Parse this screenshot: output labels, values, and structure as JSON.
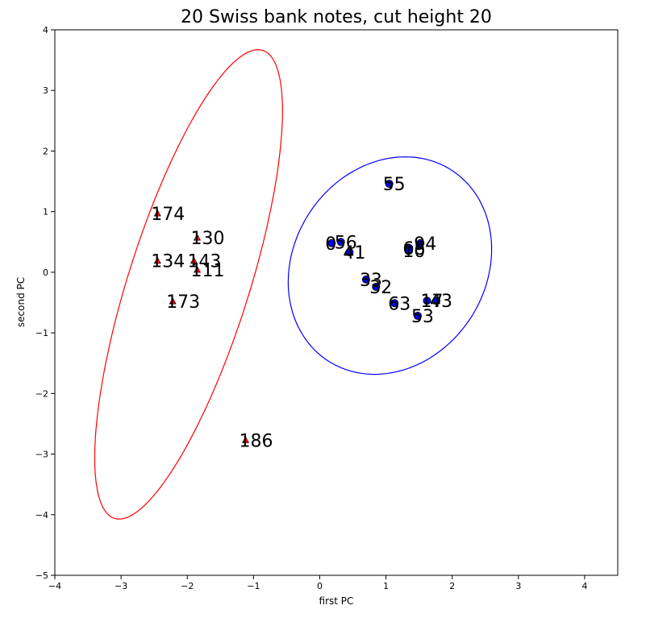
{
  "chart_data": {
    "type": "scatter",
    "title": "20 Swiss bank notes, cut height 20",
    "xlabel": "first PC",
    "ylabel": "second PC",
    "xlim": [
      -4,
      4.5
    ],
    "ylim": [
      -5,
      4
    ],
    "xticks": [
      -4,
      -3,
      -2,
      -1,
      0,
      1,
      2,
      3,
      4
    ],
    "yticks": [
      -5,
      -4,
      -3,
      -2,
      -1,
      0,
      1,
      2,
      3,
      4
    ],
    "tick_labels_x": [
      "−4",
      "−3",
      "−2",
      "−1",
      "0",
      "1",
      "2",
      "3",
      "4"
    ],
    "tick_labels_y": [
      "−5",
      "−4",
      "−3",
      "−2",
      "−1",
      "0",
      "1",
      "2",
      "3",
      "4"
    ],
    "grid": false,
    "series": [
      {
        "color": "#ff0000",
        "marker": "triangle",
        "points": [
          {
            "label": "174",
            "x": -2.45,
            "y": 0.97
          },
          {
            "label": "130",
            "x": -1.85,
            "y": 0.57
          },
          {
            "label": "134",
            "x": -2.45,
            "y": 0.19
          },
          {
            "label": "143",
            "x": -1.9,
            "y": 0.19
          },
          {
            "label": "111",
            "x": -1.85,
            "y": 0.04
          },
          {
            "label": "173",
            "x": -2.22,
            "y": -0.48
          },
          {
            "label": "186",
            "x": -1.12,
            "y": -2.77
          }
        ],
        "ellipse": {
          "cx": -1.98,
          "cy": -0.2,
          "rx": 4.02,
          "ry": 0.92,
          "angle_deg": 74
        }
      },
      {
        "color": "#0000ff",
        "marker": "circle",
        "points": [
          {
            "label": "55",
            "x": 1.05,
            "y": 1.46
          },
          {
            "label": "0",
            "x": 0.18,
            "y": 0.48
          },
          {
            "label": "56",
            "x": 0.32,
            "y": 0.5
          },
          {
            "label": "41",
            "x": 0.45,
            "y": 0.33
          },
          {
            "label": "68",
            "x": 1.35,
            "y": 0.4
          },
          {
            "label": "94",
            "x": 1.52,
            "y": 0.48
          },
          {
            "label": "10",
            "x": 1.35,
            "y": 0.36
          },
          {
            "label": "33",
            "x": 0.7,
            "y": -0.12
          },
          {
            "label": "32",
            "x": 0.85,
            "y": -0.24
          },
          {
            "label": "63",
            "x": 1.13,
            "y": -0.51
          },
          {
            "label": "17",
            "x": 1.62,
            "y": -0.47
          },
          {
            "label": "43",
            "x": 1.76,
            "y": -0.47
          },
          {
            "label": "53",
            "x": 1.48,
            "y": -0.72
          }
        ],
        "ellipse": {
          "cx": 1.06,
          "cy": 0.11,
          "rx": 1.84,
          "ry": 1.48,
          "angle_deg": 68
        }
      }
    ]
  }
}
